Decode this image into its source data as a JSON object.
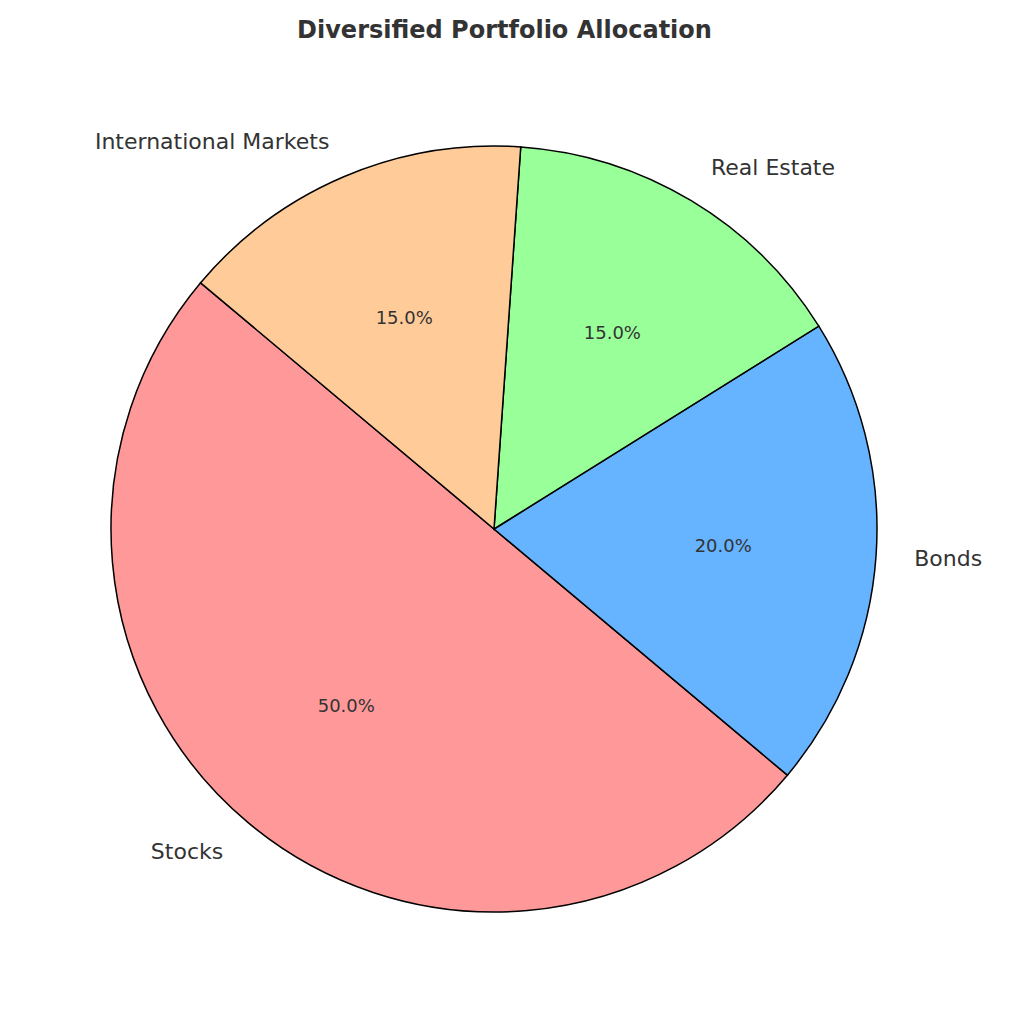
{
  "chart_data": {
    "type": "pie",
    "title": "Diversified Portfolio Allocation",
    "categories": [
      "Stocks",
      "Bonds",
      "Real Estate",
      "International Markets"
    ],
    "values": [
      50,
      20,
      15,
      15
    ],
    "value_labels": [
      "50.0%",
      "20.0%",
      "15.0%",
      "15.0%"
    ],
    "colors": [
      "#ff9999",
      "#66b3ff",
      "#99ff99",
      "#ffcc99"
    ],
    "data_labels": true
  }
}
